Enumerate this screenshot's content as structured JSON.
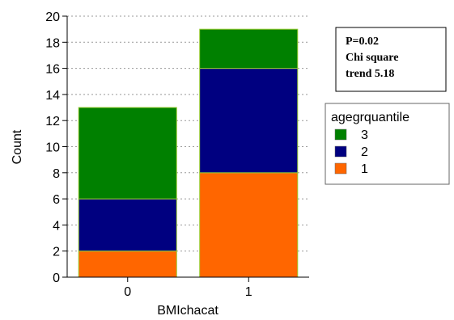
{
  "chart_data": {
    "type": "bar",
    "stacked": true,
    "categories": [
      "0",
      "1"
    ],
    "series": [
      {
        "name": "1",
        "values": [
          2,
          8
        ],
        "color": "#FF6600"
      },
      {
        "name": "2",
        "values": [
          4,
          8
        ],
        "color": "#000080"
      },
      {
        "name": "3",
        "values": [
          7,
          3
        ],
        "color": "#008000"
      }
    ],
    "xlabel": "BMIchacat",
    "ylabel": "Count",
    "ylim": [
      0,
      20
    ],
    "yticks": [
      "0",
      "2",
      "4",
      "6",
      "8",
      "10",
      "12",
      "14",
      "16",
      "18",
      "20"
    ],
    "grid": "horizontal dotted",
    "legend": {
      "title": "agegrquantile",
      "placement": "right",
      "entries": [
        "3",
        "2",
        "1"
      ]
    },
    "annotation": {
      "lines": [
        "P=0.02",
        "Chi square",
        "trend 5.18"
      ],
      "placement": "top-right"
    },
    "bar_edge_color": "#99CC33"
  }
}
